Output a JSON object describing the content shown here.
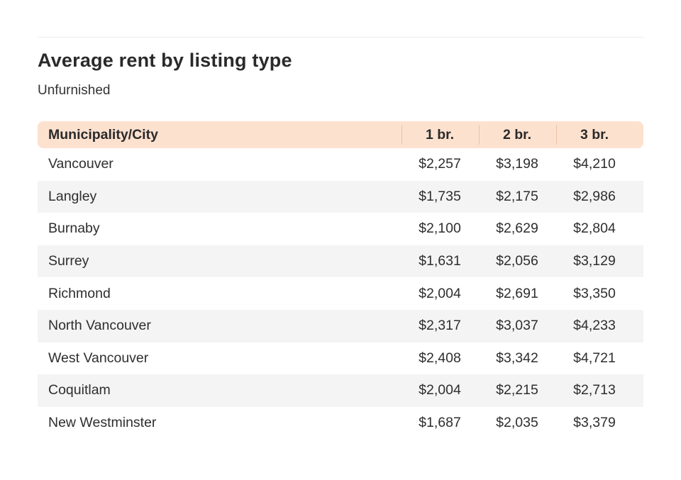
{
  "title": "Average rent by listing type",
  "subtitle": "Unfurnished",
  "colors": {
    "header_background": "#fde1cf",
    "stripe_background": "#f4f4f4",
    "text": "#2e2e2e"
  },
  "chart_data": {
    "type": "table",
    "title": "Average rent by listing type",
    "subtitle": "Unfurnished",
    "columns": [
      "Municipality/City",
      "1 br.",
      "2 br.",
      "3 br."
    ],
    "rows": [
      [
        "Vancouver",
        "$2,257",
        "$3,198",
        "$4,210"
      ],
      [
        "Langley",
        "$1,735",
        "$2,175",
        "$2,986"
      ],
      [
        "Burnaby",
        "$2,100",
        "$2,629",
        "$2,804"
      ],
      [
        "Surrey",
        "$1,631",
        "$2,056",
        "$3,129"
      ],
      [
        "Richmond",
        "$2,004",
        "$2,691",
        "$3,350"
      ],
      [
        "North Vancouver",
        "$2,317",
        "$3,037",
        "$4,233"
      ],
      [
        "West Vancouver",
        "$2,408",
        "$3,342",
        "$4,721"
      ],
      [
        "Coquitlam",
        "$2,004",
        "$2,215",
        "$2,713"
      ],
      [
        "New Westminster",
        "$1,687",
        "$2,035",
        "$3,379"
      ]
    ]
  }
}
